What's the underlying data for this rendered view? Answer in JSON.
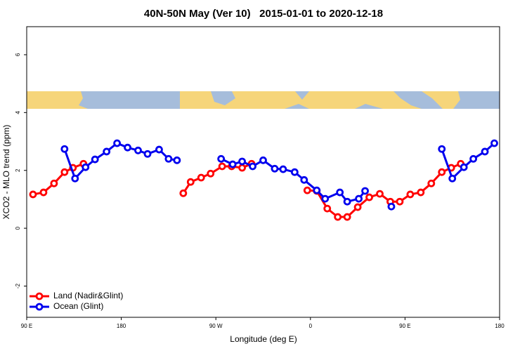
{
  "chart_data": {
    "type": "line",
    "title": "40N-50N May (Ver 10)   2015-01-01 to 2020-12-18",
    "x_label": "Longitude (deg E)",
    "y_label": "XCO2 - MLO trend (ppm)",
    "xlim": [
      90,
      540
    ],
    "ylim": [
      -3.08,
      6.97
    ],
    "xticks": [
      {
        "value": 90,
        "label": "90 E"
      },
      {
        "value": 180,
        "label": "180"
      },
      {
        "value": 270,
        "label": "90 W"
      },
      {
        "value": 360,
        "label": "0"
      },
      {
        "value": 450,
        "label": "90 E"
      },
      {
        "value": 540,
        "label": "180"
      }
    ],
    "yticks": [
      -2,
      0,
      2,
      4,
      6
    ],
    "legend": "bottom-left",
    "series": [
      {
        "name": "Land (Nadir&Glint)",
        "color": "#ff0000",
        "x": [
          96,
          106,
          116,
          126,
          134,
          144,
          190,
          239,
          246,
          256,
          265,
          276,
          285,
          295,
          304,
          330,
          357,
          366,
          376,
          386,
          395,
          405,
          416,
          426,
          436,
          445,
          455,
          465,
          475,
          485,
          494,
          503
        ],
        "values": [
          1.17,
          1.24,
          1.55,
          1.94,
          2.09,
          2.23,
          null,
          1.21,
          1.6,
          1.75,
          1.89,
          2.14,
          2.14,
          2.09,
          2.23,
          null,
          1.31,
          1.29,
          0.68,
          0.39,
          0.39,
          0.73,
          1.07,
          1.19,
          0.92,
          0.92,
          1.17,
          1.24,
          1.55,
          1.94,
          2.09,
          2.23
        ]
      },
      {
        "name": "Ocean (Glint)",
        "color": "#0000ee",
        "x": [
          126,
          136,
          146,
          155,
          166,
          176,
          186,
          196,
          205,
          216,
          225,
          233,
          254,
          275,
          286,
          295,
          305,
          315,
          326,
          334,
          345,
          354,
          366,
          374,
          388,
          395,
          406,
          412,
          424,
          437,
          460,
          485,
          495,
          506,
          515,
          526,
          535
        ],
        "values": [
          2.74,
          1.72,
          2.11,
          2.38,
          2.65,
          2.94,
          2.79,
          2.69,
          2.57,
          2.72,
          2.4,
          2.35,
          null,
          2.4,
          2.21,
          2.31,
          2.14,
          2.35,
          2.06,
          2.04,
          1.94,
          1.67,
          1.31,
          1.02,
          1.24,
          0.92,
          1.02,
          1.29,
          null,
          0.75,
          null,
          2.74,
          1.72,
          2.11,
          2.4,
          2.65,
          2.94
        ]
      }
    ]
  }
}
